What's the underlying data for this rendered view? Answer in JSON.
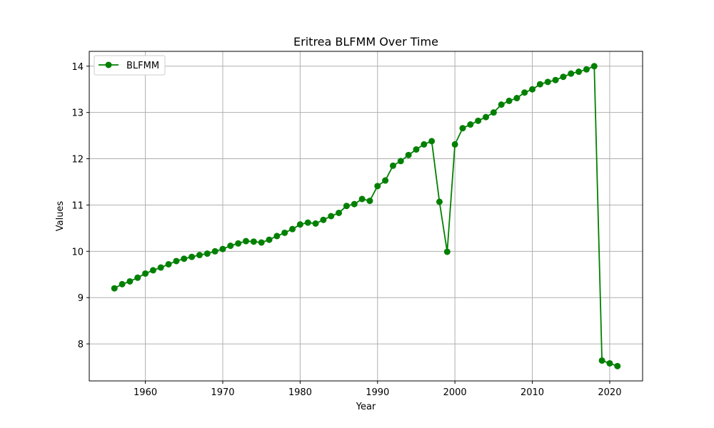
{
  "chart_data": {
    "type": "line",
    "title": "Eritrea BLFMM Over Time",
    "xlabel": "Year",
    "ylabel": "Values",
    "xlim": [
      1952.75,
      2024.25
    ],
    "ylim": [
      7.2,
      14.32
    ],
    "x_ticks": [
      1960,
      1970,
      1980,
      1990,
      2000,
      2010,
      2020
    ],
    "y_ticks": [
      8,
      9,
      10,
      11,
      12,
      13,
      14
    ],
    "grid": true,
    "legend_position": "top-left",
    "series": [
      {
        "name": "BLFMM",
        "color": "#008000",
        "marker": "circle",
        "x": [
          1956,
          1957,
          1958,
          1959,
          1960,
          1961,
          1962,
          1963,
          1964,
          1965,
          1966,
          1967,
          1968,
          1969,
          1970,
          1971,
          1972,
          1973,
          1974,
          1975,
          1976,
          1977,
          1978,
          1979,
          1980,
          1981,
          1982,
          1983,
          1984,
          1985,
          1986,
          1987,
          1988,
          1989,
          1990,
          1991,
          1992,
          1993,
          1994,
          1995,
          1996,
          1997,
          1998,
          1999,
          2000,
          2001,
          2002,
          2003,
          2004,
          2005,
          2006,
          2007,
          2008,
          2009,
          2010,
          2011,
          2012,
          2013,
          2014,
          2015,
          2016,
          2017,
          2018,
          2019,
          2020,
          2021
        ],
        "y": [
          9.2,
          9.29,
          9.35,
          9.43,
          9.52,
          9.59,
          9.65,
          9.72,
          9.79,
          9.84,
          9.88,
          9.92,
          9.95,
          10.0,
          10.05,
          10.12,
          10.17,
          10.22,
          10.21,
          10.19,
          10.25,
          10.33,
          10.4,
          10.48,
          10.58,
          10.62,
          10.6,
          10.68,
          10.76,
          10.83,
          10.98,
          11.02,
          11.13,
          11.09,
          11.41,
          11.53,
          11.85,
          11.95,
          12.08,
          12.2,
          12.31,
          12.38,
          11.07,
          9.99,
          12.31,
          12.66,
          12.74,
          12.82,
          12.9,
          13.0,
          13.17,
          13.25,
          13.31,
          13.43,
          13.5,
          13.61,
          13.66,
          13.7,
          13.77,
          13.84,
          13.88,
          13.93,
          14.0,
          7.64,
          7.58,
          7.52
        ]
      }
    ]
  }
}
